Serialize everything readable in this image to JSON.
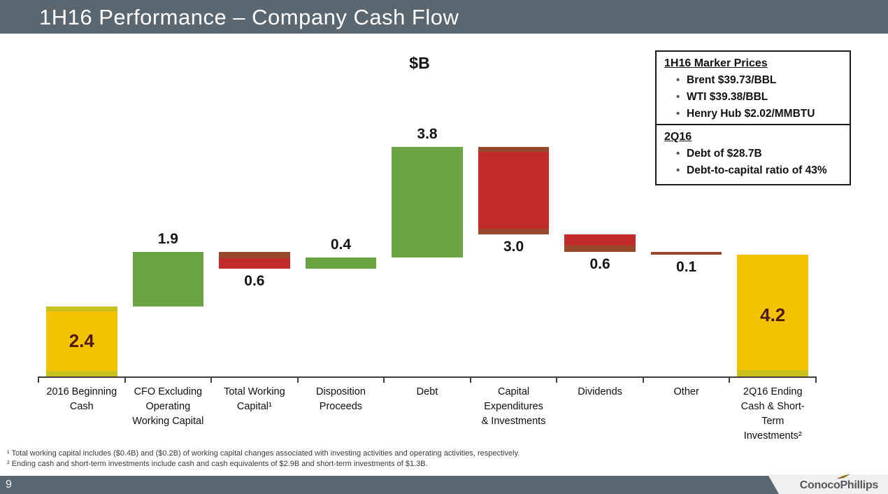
{
  "header": {
    "title": "1H16 Performance – Company Cash Flow"
  },
  "chart_data": {
    "type": "bar",
    "subtype": "waterfall",
    "title": "$B",
    "unit_label": "$B",
    "categories": [
      "2016 Beginning\nCash",
      "CFO Excluding\nOperating\nWorking Capital",
      "Total Working\nCapital¹",
      "Disposition\nProceeds",
      "Debt",
      "Capital\nExpenditures\n& Investments",
      "Dividends",
      "Other",
      "2Q16 Ending\nCash & Short-\nTerm\nInvestments²"
    ],
    "values": [
      2.4,
      1.9,
      -0.6,
      0.4,
      3.8,
      -3.0,
      -0.6,
      -0.1,
      4.2
    ],
    "display_labels": [
      "2.4",
      "1.9",
      "0.6",
      "0.4",
      "3.8",
      "3.0",
      "0.6",
      "0.1",
      "4.2"
    ],
    "bar_kinds": [
      "total",
      "increase",
      "decrease",
      "increase",
      "increase",
      "decrease",
      "decrease",
      "decrease",
      "total"
    ],
    "label_placement": [
      "inside",
      "above",
      "below",
      "above",
      "above",
      "below",
      "below",
      "below",
      "inside"
    ],
    "accents": [
      "top-bottom",
      "none",
      "top",
      "none",
      "none",
      "top-bottom",
      "bottom",
      "full",
      "bottom"
    ],
    "ylim": [
      0,
      8.6
    ],
    "grid": false,
    "legend": "none",
    "colors": {
      "total": "#F3C202",
      "increase": "#6AA544",
      "decrease": "#C12B2B",
      "total_accent": "#C9C11E",
      "decrease_accent": "#96492B",
      "inside_label": "#4F1B08",
      "outside_label": "#141414",
      "axis": "#3f3f3f"
    }
  },
  "callouts": [
    {
      "title": "1H16 Marker Prices",
      "items": [
        "Brent $39.73/BBL",
        "WTI $39.38/BBL",
        "Henry Hub $2.02/MMBTU"
      ]
    },
    {
      "title": "2Q16",
      "items": [
        "Debt of $28.7B",
        "Debt-to-capital ratio of 43%"
      ]
    }
  ],
  "footnotes": [
    "¹ Total working capital includes ($0.4B) and ($0.2B) of working capital changes associated with investing activities and operating activities, respectively.",
    "² Ending cash and short-term investments include cash and cash equivalents of $2.9B and short-term investments of $1.3B."
  ],
  "footer": {
    "page_number": "9",
    "logo_text": "ConocoPhillips"
  }
}
